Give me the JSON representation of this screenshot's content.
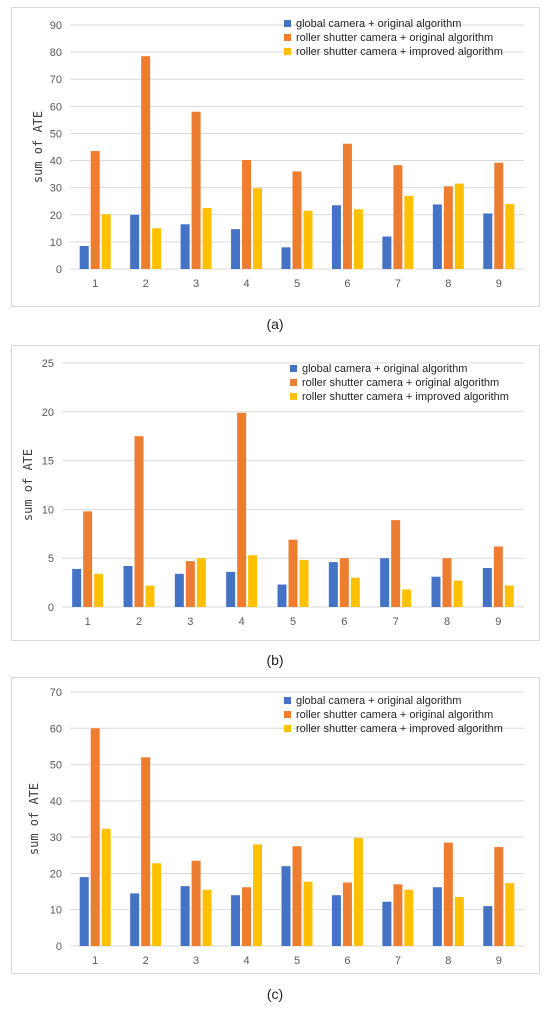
{
  "captions": [
    "(a)",
    "(b)",
    "(c)"
  ],
  "colors": {
    "global": "#4472C4",
    "rolling_orig": "#ED7D31",
    "rolling_impr": "#FFC000",
    "grid": "#d9d9d9"
  },
  "chart_data": [
    {
      "type": "bar",
      "ylabel": "sum of ATE",
      "xlabel": "",
      "ylim": [
        0,
        90
      ],
      "yticks": [
        0,
        10,
        20,
        30,
        40,
        50,
        60,
        70,
        80,
        90
      ],
      "categories": [
        "1",
        "2",
        "3",
        "4",
        "5",
        "6",
        "7",
        "8",
        "9"
      ],
      "legend_position": "top-right",
      "grid": true,
      "series": [
        {
          "name": "global camera + original algorithm",
          "color": "#4472C4",
          "values": [
            8.5,
            20,
            16.5,
            14.7,
            8,
            23.5,
            12,
            23.8,
            20.5
          ]
        },
        {
          "name": "roller shutter camera + original algorithm",
          "color": "#ED7D31",
          "values": [
            43.5,
            78.5,
            58,
            40.2,
            36,
            46.2,
            38.3,
            30.5,
            39.2
          ]
        },
        {
          "name": "roller shutter camera + improved algorithm",
          "color": "#FFC000",
          "values": [
            20.2,
            15,
            22.5,
            29.8,
            21.5,
            22,
            27,
            31.5,
            24
          ]
        }
      ]
    },
    {
      "type": "bar",
      "ylabel": "sum of ATE",
      "xlabel": "",
      "ylim": [
        0,
        25
      ],
      "yticks": [
        0,
        5,
        10,
        15,
        20,
        25
      ],
      "categories": [
        "1",
        "2",
        "3",
        "4",
        "5",
        "6",
        "7",
        "8",
        "9"
      ],
      "legend_position": "top-right",
      "grid": true,
      "series": [
        {
          "name": "global camera + original algorithm",
          "color": "#4472C4",
          "values": [
            3.9,
            4.2,
            3.4,
            3.6,
            2.3,
            4.6,
            5.0,
            3.1,
            4.0
          ]
        },
        {
          "name": "roller shutter camera + original algorithm",
          "color": "#ED7D31",
          "values": [
            9.8,
            17.5,
            4.7,
            19.9,
            6.9,
            5.0,
            8.9,
            5.0,
            6.2
          ]
        },
        {
          "name": "roller shutter camera + improved algorithm",
          "color": "#FFC000",
          "values": [
            3.4,
            2.2,
            5.0,
            5.3,
            4.8,
            3.0,
            1.8,
            2.7,
            2.2
          ]
        }
      ]
    },
    {
      "type": "bar",
      "ylabel": "sum of ATE",
      "xlabel": "",
      "ylim": [
        0,
        70
      ],
      "yticks": [
        0,
        10,
        20,
        30,
        40,
        50,
        60,
        70
      ],
      "categories": [
        "1",
        "2",
        "3",
        "4",
        "5",
        "6",
        "7",
        "8",
        "9"
      ],
      "legend_position": "top-right",
      "grid": true,
      "series": [
        {
          "name": "global camera + original algorithm",
          "color": "#4472C4",
          "values": [
            19,
            14.5,
            16.5,
            14,
            22,
            14,
            12.2,
            16.2,
            11
          ]
        },
        {
          "name": "roller shutter camera + original algorithm",
          "color": "#ED7D31",
          "values": [
            60,
            52,
            23.5,
            16.2,
            27.5,
            17.5,
            17,
            28.5,
            27.3
          ]
        },
        {
          "name": "roller shutter camera + improved algorithm",
          "color": "#FFC000",
          "values": [
            32.3,
            22.8,
            15.5,
            28,
            17.7,
            29.8,
            15.5,
            13.5,
            17.3
          ]
        }
      ]
    }
  ]
}
